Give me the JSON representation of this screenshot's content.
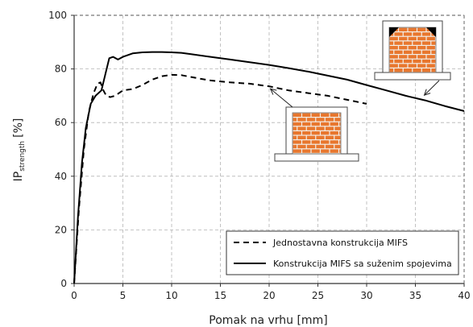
{
  "chart_data": {
    "type": "line",
    "xlabel": "Pomak na vrhu [mm]",
    "ylabel_main": "IP",
    "ylabel_sub": "strength",
    "ylabel_unit": "[%]",
    "xlim": [
      0,
      40
    ],
    "ylim": [
      0,
      100
    ],
    "x_ticks": [
      "0",
      "5",
      "10",
      "15",
      "20",
      "25",
      "30",
      "35",
      "40"
    ],
    "y_ticks": [
      "0",
      "20",
      "40",
      "60",
      "80",
      "100"
    ],
    "grid": true,
    "legend_position": "bottom-right",
    "series": [
      {
        "name": "Jednostavna konstrukcija MIFS",
        "style": "dashed",
        "color": "#000000",
        "points": [
          [
            0,
            0
          ],
          [
            0.5,
            28
          ],
          [
            1,
            50
          ],
          [
            1.5,
            64
          ],
          [
            2,
            71
          ],
          [
            2.4,
            74.5
          ],
          [
            2.7,
            75
          ],
          [
            3,
            72
          ],
          [
            3.3,
            70
          ],
          [
            3.7,
            69.5
          ],
          [
            4.2,
            70
          ],
          [
            5,
            72
          ],
          [
            6,
            72.5
          ],
          [
            7,
            74
          ],
          [
            8,
            76
          ],
          [
            9,
            77.3
          ],
          [
            10,
            77.8
          ],
          [
            11,
            77.7
          ],
          [
            12,
            77
          ],
          [
            13,
            76.3
          ],
          [
            14,
            75.7
          ],
          [
            16,
            75
          ],
          [
            18,
            74.5
          ],
          [
            20,
            73.5
          ],
          [
            22,
            72
          ],
          [
            24,
            71
          ],
          [
            26,
            70
          ],
          [
            28,
            68.5
          ],
          [
            30,
            67
          ]
        ]
      },
      {
        "name": "Konstrukcija MIFS sa suženim spojevima",
        "style": "solid",
        "color": "#000000",
        "points": [
          [
            0,
            0
          ],
          [
            0.4,
            25
          ],
          [
            0.8,
            45
          ],
          [
            1.2,
            58
          ],
          [
            1.7,
            67
          ],
          [
            2.2,
            70
          ],
          [
            2.8,
            72
          ],
          [
            3.2,
            78
          ],
          [
            3.6,
            84
          ],
          [
            4,
            84.5
          ],
          [
            4.5,
            83.5
          ],
          [
            5,
            84.5
          ],
          [
            6,
            85.8
          ],
          [
            7,
            86.2
          ],
          [
            8,
            86.3
          ],
          [
            9,
            86.3
          ],
          [
            10,
            86.2
          ],
          [
            11,
            86
          ],
          [
            12,
            85.5
          ],
          [
            14,
            84.5
          ],
          [
            16,
            83.5
          ],
          [
            18,
            82.5
          ],
          [
            20,
            81.5
          ],
          [
            22,
            80.3
          ],
          [
            24,
            79
          ],
          [
            26,
            77.5
          ],
          [
            28,
            76
          ],
          [
            30,
            74
          ],
          [
            32,
            72
          ],
          [
            34,
            70
          ],
          [
            36,
            68.3
          ],
          [
            38,
            66.2
          ],
          [
            40,
            64.3
          ]
        ]
      }
    ]
  },
  "illustrations": {
    "plain": {
      "icon": "brick-wall-frame-icon",
      "brick_color": "#e8772e",
      "arrow_target": [
        19.8,
        73.8
      ]
    },
    "narrowed": {
      "icon": "brick-wall-frame-corner-joints-icon",
      "brick_color": "#e8772e",
      "arrow_target": [
        35.5,
        69
      ]
    }
  }
}
